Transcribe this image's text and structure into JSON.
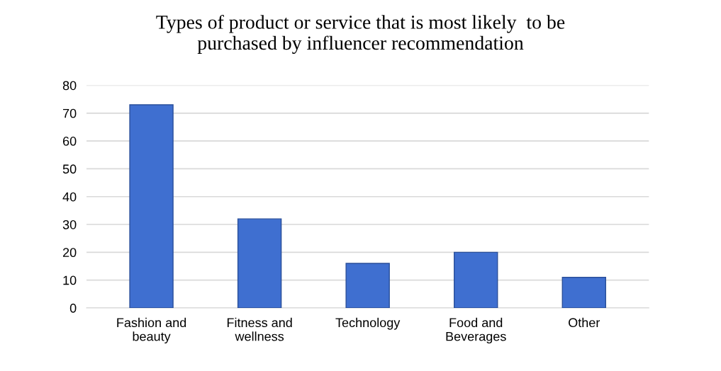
{
  "chart_data": {
    "type": "bar",
    "title": "Types of product or service that is most likely  to be\npurchased by influencer recommendation",
    "categories": [
      "Fashion and\nbeauty",
      "Fitness and\nwellness",
      "Technology",
      "Food and\nBeverages",
      "Other"
    ],
    "values": [
      73,
      32,
      16,
      20,
      11
    ],
    "color": "#3f6fd0",
    "ylim": [
      0,
      80
    ],
    "yticks": [
      0,
      10,
      20,
      30,
      40,
      50,
      60,
      70,
      80
    ],
    "grid": "y"
  }
}
